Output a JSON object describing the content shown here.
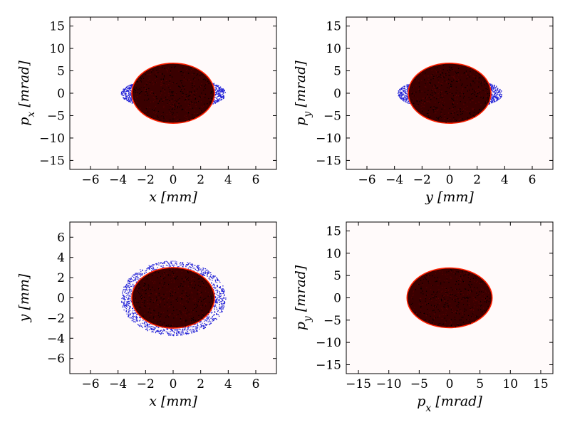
{
  "chart_data": [
    {
      "type": "scatter",
      "xlabel": "x [mm]",
      "ylabel": "p_x [mrad]",
      "xlim": [
        -7.5,
        7.5
      ],
      "ylim": [
        -17,
        17
      ],
      "xticks": [
        -6,
        -4,
        -2,
        0,
        2,
        4,
        6
      ],
      "yticks": [
        -15,
        -10,
        -5,
        0,
        5,
        10,
        15
      ],
      "series": [
        {
          "color": "#1f1fd6",
          "shape": "ellipse",
          "center": [
            0,
            0
          ],
          "semi_axes": [
            3.8,
            3.6
          ]
        },
        {
          "color": "#3a0000",
          "edge": "#ff2000",
          "shape": "ellipse",
          "center": [
            0,
            0
          ],
          "semi_axes": [
            3.0,
            6.7
          ]
        }
      ]
    },
    {
      "type": "scatter",
      "xlabel": "y [mm]",
      "ylabel": "p_y [mrad]",
      "xlim": [
        -7.5,
        7.5
      ],
      "ylim": [
        -17,
        17
      ],
      "xticks": [
        -6,
        -4,
        -2,
        0,
        2,
        4,
        6
      ],
      "yticks": [
        -15,
        -10,
        -5,
        0,
        5,
        10,
        15
      ],
      "series": [
        {
          "color": "#1f1fd6",
          "shape": "ellipse",
          "center": [
            0,
            0
          ],
          "semi_axes": [
            3.8,
            3.6
          ]
        },
        {
          "color": "#3a0000",
          "edge": "#ff2000",
          "shape": "ellipse",
          "center": [
            0,
            0
          ],
          "semi_axes": [
            3.0,
            6.7
          ]
        }
      ]
    },
    {
      "type": "scatter",
      "xlabel": "x [mm]",
      "ylabel": "y [mm]",
      "xlim": [
        -7.5,
        7.5
      ],
      "ylim": [
        -7.5,
        7.5
      ],
      "xticks": [
        -6,
        -4,
        -2,
        0,
        2,
        4,
        6
      ],
      "yticks": [
        -6,
        -4,
        -2,
        0,
        2,
        4,
        6
      ],
      "series": [
        {
          "color": "#1f1fd6",
          "shape": "ellipse",
          "center": [
            0,
            0
          ],
          "semi_axes": [
            3.8,
            3.7
          ]
        },
        {
          "color": "#3a0000",
          "edge": "#ff2000",
          "shape": "ellipse",
          "center": [
            0,
            0
          ],
          "semi_axes": [
            3.0,
            3.0
          ]
        }
      ]
    },
    {
      "type": "scatter",
      "xlabel": "p_x [mrad]",
      "ylabel": "p_y [mrad]",
      "xlim": [
        -17,
        17
      ],
      "ylim": [
        -17,
        17
      ],
      "xticks": [
        -15,
        -10,
        -5,
        0,
        5,
        10,
        15
      ],
      "yticks": [
        -15,
        -10,
        -5,
        0,
        5,
        10,
        15
      ],
      "series": [
        {
          "color": "#3a0000",
          "edge": "#ff2000",
          "shape": "ellipse",
          "center": [
            0,
            0
          ],
          "semi_axes": [
            7.0,
            6.7
          ]
        }
      ]
    }
  ]
}
